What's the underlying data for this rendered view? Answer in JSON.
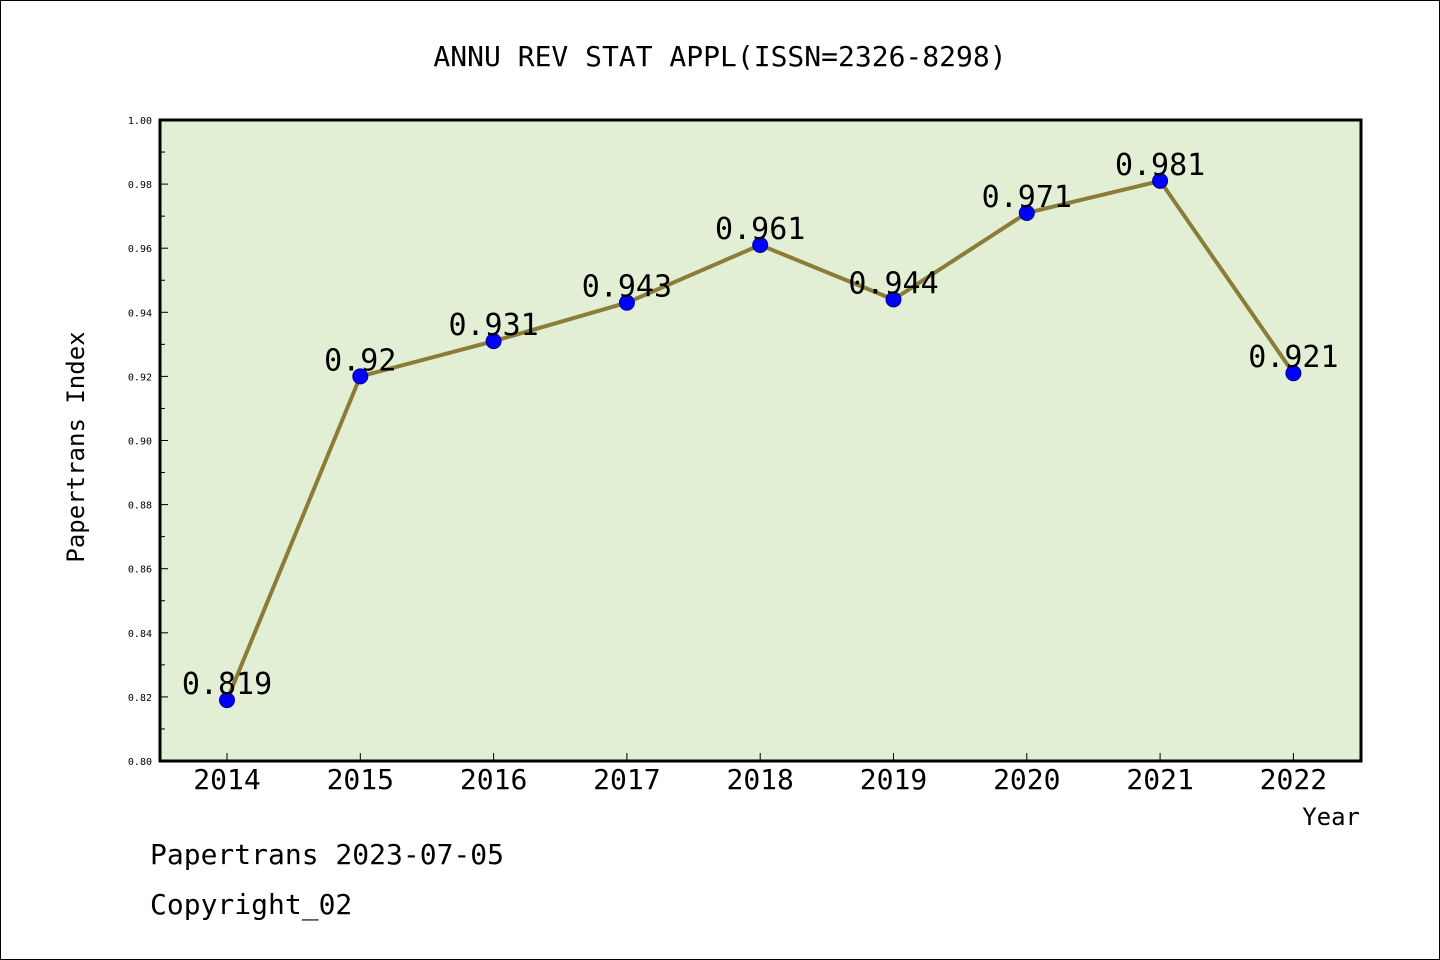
{
  "chart_data": {
    "type": "line",
    "title": "ANNU REV STAT APPL(ISSN=2326-8298)",
    "xlabel": "Year",
    "ylabel": "Papertrans Index",
    "categories": [
      "2014",
      "2015",
      "2016",
      "2017",
      "2018",
      "2019",
      "2020",
      "2021",
      "2022"
    ],
    "series": [
      {
        "values": [
          0.819,
          0.92,
          0.931,
          0.943,
          0.961,
          0.944,
          0.971,
          0.981,
          0.921
        ],
        "labels": [
          "0.819",
          "0.92",
          "0.931",
          "0.943",
          "0.961",
          "0.944",
          "0.971",
          "0.981",
          "0.921"
        ]
      }
    ],
    "ylim": [
      0.8,
      1.0
    ],
    "yticks": [
      "0.80",
      "0.82",
      "0.84",
      "0.86",
      "0.88",
      "0.90",
      "0.92",
      "0.94",
      "0.96",
      "0.98",
      "1.00"
    ],
    "grid": false,
    "colors": {
      "plot_background": "#e2efd5",
      "line": "#8b7d37",
      "marker": "#0000ff"
    }
  },
  "footer": {
    "line1": "Papertrans 2023-07-05",
    "line2": "Copyright_02"
  }
}
